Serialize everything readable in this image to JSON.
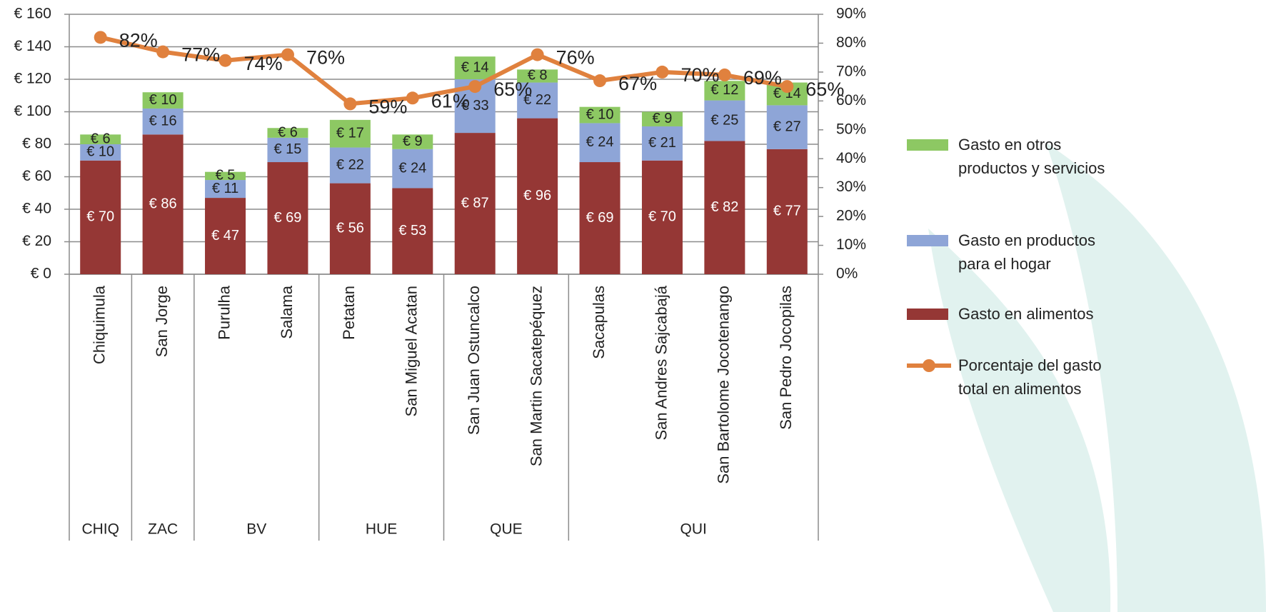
{
  "chart_data": {
    "type": "bar",
    "stacked": true,
    "categories": [
      "Chiquimula",
      "San Jorge",
      "Purulha",
      "Salama",
      "Petatan",
      "San Miguel Acatan",
      "San Juan Ostuncalco",
      "San Martin Sacatepéquez",
      "Sacapulas",
      "San Andres Sajcabajá",
      "San Bartolome Jocotenango",
      "San Pedro Jocopilas"
    ],
    "groups": [
      {
        "name": "CHIQ",
        "count": 1
      },
      {
        "name": "ZAC",
        "count": 1
      },
      {
        "name": "BV",
        "count": 2
      },
      {
        "name": "HUE",
        "count": 2
      },
      {
        "name": "QUE",
        "count": 2
      },
      {
        "name": "QUI",
        "count": 4
      }
    ],
    "series": [
      {
        "name": "Gasto en alimentos",
        "color": "#953735",
        "values": [
          70,
          86,
          47,
          69,
          56,
          53,
          87,
          96,
          69,
          70,
          82,
          77
        ],
        "value_labels": [
          "€ 70",
          "€ 86",
          "€ 47",
          "€ 69",
          "€ 56",
          "€ 53",
          "€ 87",
          "€ 96",
          "€ 69",
          "€ 70",
          "€ 82",
          "€ 77"
        ]
      },
      {
        "name": "Gasto en productos para el hogar",
        "color": "#8ea5d7",
        "values": [
          10,
          16,
          11,
          15,
          22,
          24,
          33,
          22,
          24,
          21,
          25,
          27
        ],
        "value_labels": [
          "€ 10",
          "€ 16",
          "€ 11",
          "€ 15",
          "€ 22",
          "€ 24",
          "€ 33",
          "€ 22",
          "€ 24",
          "€ 21",
          "€ 25",
          "€ 27"
        ]
      },
      {
        "name": "Gasto en otros productos y servicios",
        "color": "#8dc863",
        "values": [
          6,
          10,
          5,
          6,
          17,
          9,
          14,
          8,
          10,
          9,
          12,
          14
        ],
        "value_labels": [
          "€ 6",
          "€ 10",
          "€ 5",
          "€ 6",
          "€ 17",
          "€ 9",
          "€ 14",
          "€ 8",
          "€ 10",
          "€ 9",
          "€ 12",
          "€ 14"
        ]
      },
      {
        "name": "Porcentaje del gasto total en alimentos",
        "color": "#e0813e",
        "type": "line",
        "axis": "y2",
        "values": [
          82,
          77,
          74,
          76,
          59,
          61,
          65,
          76,
          67,
          70,
          69,
          65
        ],
        "value_labels": [
          "82%",
          "77%",
          "74%",
          "76%",
          "59%",
          "61%",
          "65%",
          "76%",
          "67%",
          "70%",
          "69%",
          "65%"
        ]
      }
    ],
    "ylim": [
      0,
      160
    ],
    "yticks": [
      {
        "value": 0,
        "label": "€ 0"
      },
      {
        "value": 20,
        "label": "€ 20"
      },
      {
        "value": 40,
        "label": "€ 40"
      },
      {
        "value": 60,
        "label": "€ 60"
      },
      {
        "value": 80,
        "label": "€ 80"
      },
      {
        "value": 100,
        "label": "€ 100"
      },
      {
        "value": 120,
        "label": "€ 120"
      },
      {
        "value": 140,
        "label": "€ 140"
      },
      {
        "value": 160,
        "label": "€ 160"
      }
    ],
    "y2lim": [
      0,
      90
    ],
    "y2ticks": [
      {
        "value": 0,
        "label": "0%"
      },
      {
        "value": 10,
        "label": "10%"
      },
      {
        "value": 20,
        "label": "20%"
      },
      {
        "value": 30,
        "label": "30%"
      },
      {
        "value": 40,
        "label": "40%"
      },
      {
        "value": 50,
        "label": "50%"
      },
      {
        "value": 60,
        "label": "60%"
      },
      {
        "value": 70,
        "label": "70%"
      },
      {
        "value": 80,
        "label": "80%"
      },
      {
        "value": 90,
        "label": "90%"
      }
    ],
    "grid": true,
    "legend": "right"
  }
}
